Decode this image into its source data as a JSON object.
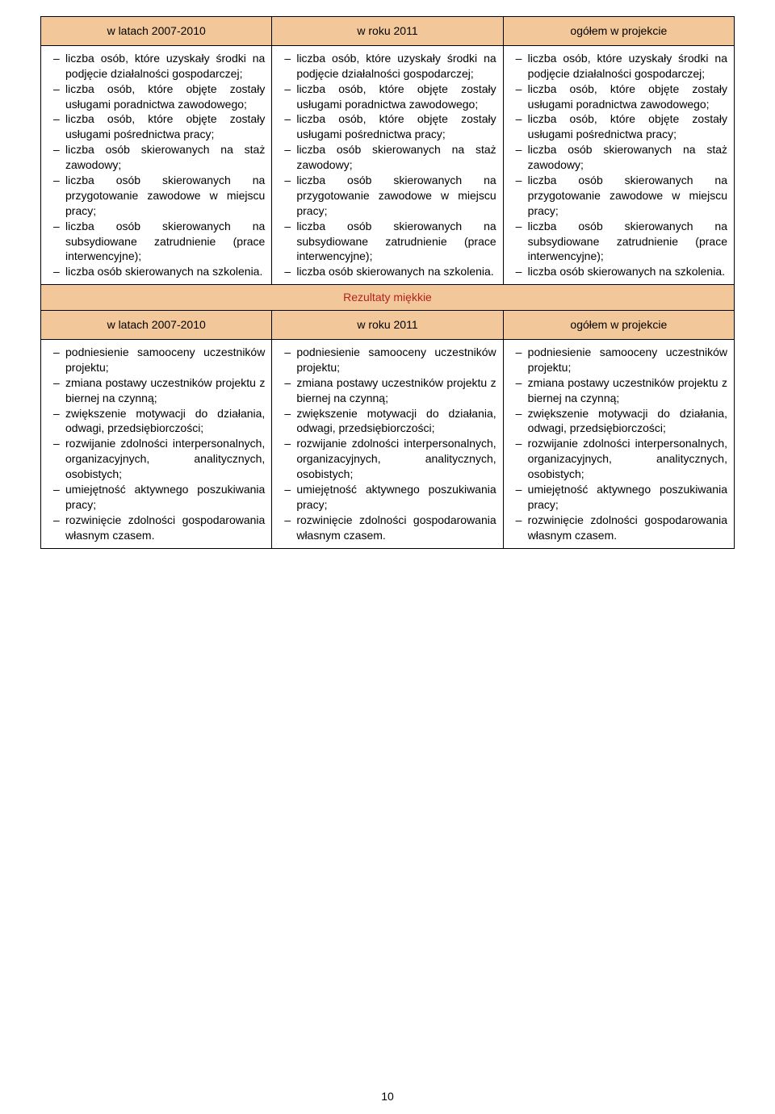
{
  "headers1": {
    "c1": "w latach 2007-2010",
    "c2": "w roku 2011",
    "c3": "ogółem w projekcie"
  },
  "block1": {
    "items": [
      "liczba osób, które uzyskały środki na podjęcie działalności gospodarczej;",
      "liczba osób, które objęte zostały usługami poradnictwa zawodowego;",
      "liczba osób, które objęte zostały usługami pośrednictwa pracy;",
      "liczba osób skierowanych na staż zawodowy;",
      "liczba osób skierowanych na przygotowanie zawodowe w miejscu pracy;",
      "liczba osób skierowanych na subsydiowane zatrudnienie (prace interwencyjne);",
      "liczba osób skierowanych na szkolenia."
    ]
  },
  "divider": "Rezultaty miękkie",
  "headers2": {
    "c1": "w latach 2007-2010",
    "c2": "w roku 2011",
    "c3": "ogółem w projekcie"
  },
  "block2": {
    "items": [
      "podniesienie samooceny uczestników projektu;",
      "zmiana postawy uczestników projektu z biernej na czynną;",
      "zwiększenie motywacji do działania, odwagi, przedsiębiorczości;",
      "rozwijanie zdolności interpersonalnych, organizacyjnych, analitycznych, osobistych;",
      "umiejętność aktywnego poszukiwania pracy;",
      "rozwinięcie zdolności gospodarowania własnym czasem."
    ]
  },
  "pageNumber": "10",
  "colors": {
    "headerBg": "#f2c89a",
    "dividerText": "#b22222",
    "border": "#000000",
    "bg": "#ffffff"
  }
}
